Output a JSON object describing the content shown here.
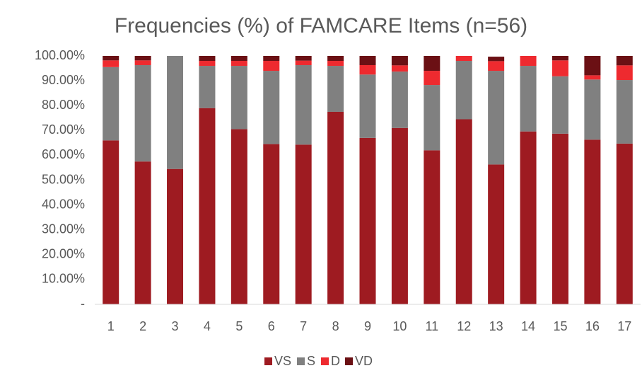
{
  "chart_data": {
    "type": "stacked_bar",
    "title": "Frequencies (%) of FAMCARE Items (n=56)",
    "categories": [
      "1",
      "2",
      "3",
      "4",
      "5",
      "6",
      "7",
      "8",
      "9",
      "10",
      "11",
      "12",
      "13",
      "14",
      "15",
      "16",
      "17"
    ],
    "series": [
      {
        "name": "VS",
        "color": "#9e1b21",
        "values": [
          66,
          57.5,
          54.5,
          79,
          70.5,
          64.5,
          64.3,
          77.5,
          67,
          71,
          62,
          74.5,
          56.3,
          69.6,
          68.7,
          66.3,
          64.7
        ]
      },
      {
        "name": "S",
        "color": "#808080",
        "values": [
          29.5,
          38.8,
          45.5,
          17,
          25.5,
          29.5,
          32,
          18.5,
          25.5,
          22.7,
          26.3,
          23.5,
          37.7,
          26.4,
          23.1,
          24.2,
          25.6
        ]
      },
      {
        "name": "D",
        "color": "#ee2a2f",
        "values": [
          2.7,
          1.9,
          0,
          2,
          2,
          4,
          1.8,
          2,
          3.8,
          2.5,
          5.7,
          2,
          3.9,
          4,
          6.4,
          1.7,
          5.9
        ]
      },
      {
        "name": "VD",
        "color": "#6b1014",
        "values": [
          1.8,
          1.8,
          0,
          2,
          2,
          2,
          1.9,
          2,
          3.7,
          3.8,
          6,
          0,
          1.8,
          0,
          1.8,
          7.8,
          3.8
        ]
      }
    ],
    "ylim": [
      0,
      100
    ],
    "yticks": [
      {
        "value": 0,
        "label": "-"
      },
      {
        "value": 10,
        "label": "10.00%"
      },
      {
        "value": 20,
        "label": "20.00%"
      },
      {
        "value": 30,
        "label": "30.00%"
      },
      {
        "value": 40,
        "label": "40.00%"
      },
      {
        "value": 50,
        "label": "50.00%"
      },
      {
        "value": 60,
        "label": "60.00%"
      },
      {
        "value": 70,
        "label": "70.00%"
      },
      {
        "value": 80,
        "label": "80.00%"
      },
      {
        "value": 90,
        "label": "90.00%"
      },
      {
        "value": 100,
        "label": "100.00%"
      }
    ],
    "grid": false,
    "legend": "bottom"
  }
}
